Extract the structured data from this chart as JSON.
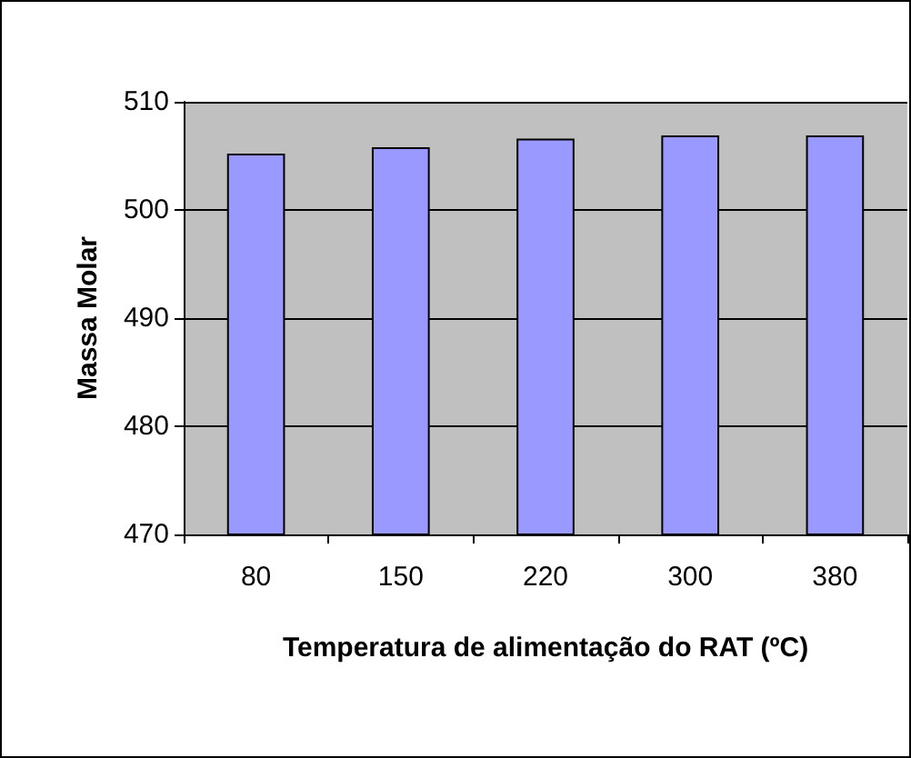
{
  "chart_data": {
    "type": "bar",
    "xlabel": "Temperatura de alimentação do RAT (ºC)",
    "ylabel": "Massa Molar",
    "categories": [
      "80",
      "150",
      "220",
      "300",
      "380"
    ],
    "values": [
      505.2,
      505.8,
      506.6,
      506.9,
      506.9
    ],
    "color": "#9999ff",
    "ylim": [
      470,
      510
    ],
    "yticks": [
      470,
      480,
      490,
      500,
      510
    ],
    "grid": "y"
  }
}
